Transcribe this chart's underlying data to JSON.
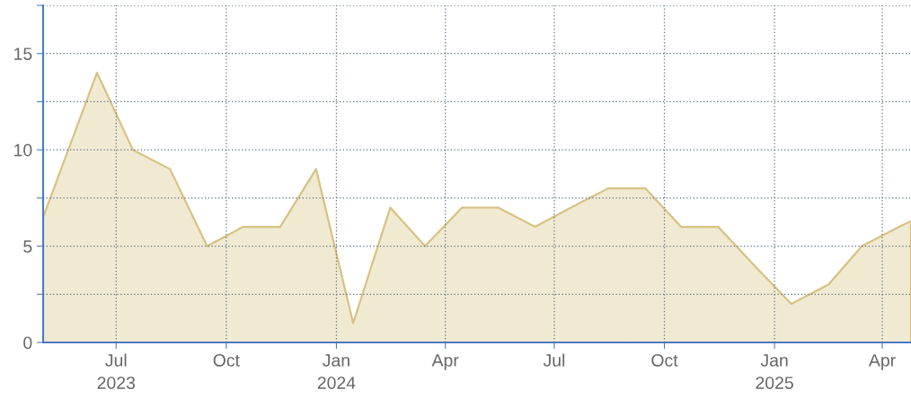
{
  "chart_data": {
    "type": "area",
    "x": [
      "2023-05-01",
      "2023-06-15",
      "2023-07-15",
      "2023-08-15",
      "2023-09-15",
      "2023-10-15",
      "2023-11-15",
      "2023-12-15",
      "2024-01-15",
      "2024-02-15",
      "2024-03-15",
      "2024-04-15",
      "2024-05-15",
      "2024-06-15",
      "2024-07-15",
      "2024-08-15",
      "2024-09-15",
      "2024-10-15",
      "2024-11-15",
      "2024-12-15",
      "2025-01-15",
      "2025-02-15",
      "2025-03-15",
      "2025-04-15",
      "2025-04-25"
    ],
    "series": [
      {
        "color": "#d6c282",
        "values": [
          6.5,
          14,
          10,
          9,
          5,
          6,
          6,
          9,
          1,
          7,
          5,
          7,
          7,
          6,
          7,
          8,
          8,
          6,
          6,
          4,
          2,
          3,
          5,
          6,
          6.3
        ]
      }
    ],
    "xlim": [
      "2023-05-01",
      "2025-04-25"
    ],
    "xticks": [
      {
        "value": "2023-07-01",
        "label": "Jul\n2023"
      },
      {
        "value": "2023-10-01",
        "label": "Oct"
      },
      {
        "value": "2024-01-01",
        "label": "Jan\n2024"
      },
      {
        "value": "2024-04-01",
        "label": "Apr"
      },
      {
        "value": "2024-07-01",
        "label": "Jul"
      },
      {
        "value": "2024-10-01",
        "label": "Oct"
      },
      {
        "value": "2025-01-01",
        "label": "Jan\n2025"
      },
      {
        "value": "2025-04-01",
        "label": "Apr"
      }
    ],
    "ylim": [
      0,
      17.5
    ],
    "yticks": [
      0,
      {
        "value": 2.5,
        "label": null
      },
      5,
      {
        "value": 7.5,
        "label": null
      },
      10,
      {
        "value": 12.5,
        "label": null
      },
      15,
      {
        "value": 17.5,
        "label": null
      }
    ],
    "grid": true
  }
}
